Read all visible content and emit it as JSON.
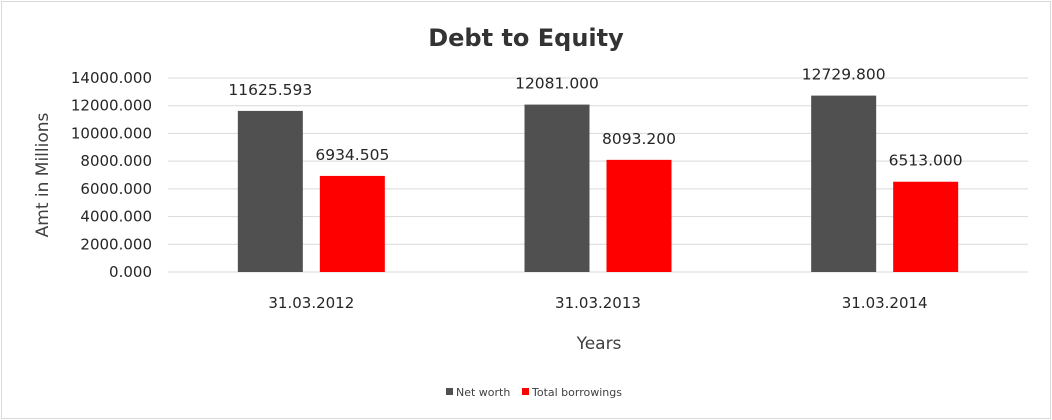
{
  "chart_data": {
    "type": "bar",
    "title": "Debt to Equity",
    "xlabel": "Years",
    "ylabel": "Amt in Millions",
    "categories": [
      "31.03.2012",
      "31.03.2013",
      "31.03.2014"
    ],
    "series": [
      {
        "name": "Net worth",
        "color": "#505050",
        "values": [
          11625.593,
          12081.0,
          12729.8
        ],
        "labels": [
          "11625.593",
          "12081.000",
          "12729.800"
        ]
      },
      {
        "name": "Total borrowings",
        "color": "#ff0000",
        "values": [
          6934.505,
          8093.2,
          6513.0
        ],
        "labels": [
          "6934.505",
          "8093.200",
          "6513.000"
        ]
      }
    ],
    "ylim": [
      0,
      14000
    ],
    "yticks": [
      "0.000",
      "2000.000",
      "4000.000",
      "6000.000",
      "8000.000",
      "10000.000",
      "12000.000",
      "14000.000"
    ],
    "ytick_values": [
      0,
      2000,
      4000,
      6000,
      8000,
      10000,
      12000,
      14000
    ],
    "grid": true,
    "legend_position": "bottom"
  }
}
